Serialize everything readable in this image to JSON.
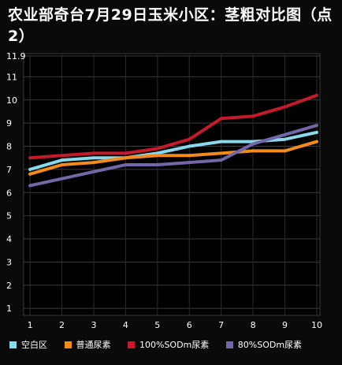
{
  "chart_data": {
    "type": "line",
    "title": "农业部奇台7月29日玉米小区：茎粗对比图（点2）",
    "x": [
      1,
      2,
      3,
      4,
      5,
      6,
      7,
      8,
      9,
      10
    ],
    "x_tick_labels": [
      "1",
      "2",
      "3",
      "4",
      "5",
      "6",
      "7",
      "8",
      "9",
      "10"
    ],
    "y_tick_labels": [
      "11.9",
      "11",
      "10",
      "9",
      "8",
      "7",
      "6",
      "5",
      "4",
      "3",
      "2",
      "1"
    ],
    "ylim": [
      1,
      11.9
    ],
    "grid": true,
    "legend_position": "bottom",
    "series": [
      {
        "name": "空白区",
        "color": "#8ad8ec",
        "values": [
          7.0,
          7.4,
          7.5,
          7.5,
          7.7,
          8.0,
          8.2,
          8.2,
          8.3,
          8.6
        ]
      },
      {
        "name": "普通尿素",
        "color": "#f28a1c",
        "values": [
          6.8,
          7.2,
          7.3,
          7.5,
          7.6,
          7.6,
          7.7,
          7.8,
          7.8,
          8.2
        ]
      },
      {
        "name": "100%SODm尿素",
        "color": "#c41a2c",
        "values": [
          7.5,
          7.6,
          7.7,
          7.7,
          7.9,
          8.3,
          9.2,
          9.3,
          9.7,
          10.2
        ]
      },
      {
        "name": "80%SODm尿素",
        "color": "#7467a8",
        "values": [
          6.3,
          6.6,
          6.9,
          7.2,
          7.2,
          7.3,
          7.4,
          8.1,
          8.5,
          8.9
        ]
      }
    ]
  }
}
